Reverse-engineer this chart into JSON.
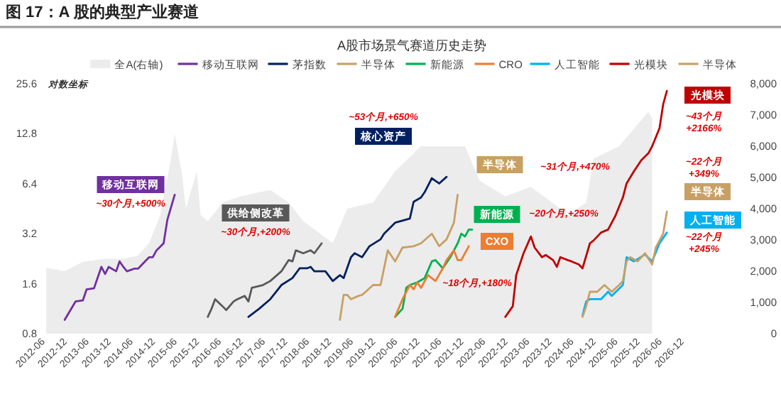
{
  "chart_data": {
    "type": "line",
    "title": "图 17：A 股的典型产业赛道",
    "subtitle": "A股市场景气赛道历史走势",
    "ylabel": "对数坐标",
    "log": "y",
    "legend": "top",
    "xlim": [
      "2012-06",
      "2026-12"
    ],
    "xticks": [
      "2012-06",
      "2012-12",
      "2013-06",
      "2013-12",
      "2014-06",
      "2014-12",
      "2015-06",
      "2015-12",
      "2016-06",
      "2016-12",
      "2017-06",
      "2017-12",
      "2018-06",
      "2018-12",
      "2019-06",
      "2019-12",
      "2020-06",
      "2020-12",
      "2021-06",
      "2021-12",
      "2022-06",
      "2022-12",
      "2023-06",
      "2023-12",
      "2024-06",
      "2024-12",
      "2025-06",
      "2025-12",
      "2026-06",
      "2026-12"
    ],
    "ylim": [
      0.8,
      25.6
    ],
    "yticks": [
      0.8,
      1.6,
      3.2,
      6.4,
      12.8,
      25.6
    ],
    "y2lim": [
      0,
      8000
    ],
    "y2ticks": [
      0,
      {
        "value": 1000,
        "label": "1,000"
      },
      {
        "value": 2000,
        "label": "2,000"
      },
      {
        "value": 3000,
        "label": "3,000"
      },
      {
        "value": 4000,
        "label": "4,000"
      },
      {
        "value": 5000,
        "label": "5,000"
      },
      {
        "value": 6000,
        "label": "6,000"
      },
      {
        "value": 7000,
        "label": "7,000"
      },
      {
        "value": 8000,
        "label": "8,000"
      }
    ],
    "series": [
      {
        "name": "全A(右轴)",
        "type": "area",
        "axis": "y2",
        "color": "#ececec",
        "x": [
          "2012-07",
          "2012-12",
          "2013-05",
          "2013-11",
          "2014-04",
          "2014-08",
          "2014-11",
          "2015-02",
          "2015-05",
          "2015-06",
          "2015-08",
          "2015-09",
          "2015-12",
          "2016-01",
          "2016-03",
          "2016-07",
          "2016-12",
          "2017-08",
          "2018-01",
          "2018-05",
          "2019-01",
          "2019-05",
          "2019-12",
          "2020-06",
          "2021-01",
          "2022-01",
          "2022-05",
          "2022-12",
          "2023-07",
          "2024-03",
          "2024-05",
          "2024-10",
          "2024-12",
          "2025-07",
          "2025-12",
          "2026-03",
          "2026-04"
        ],
        "values": [
          2100,
          2000,
          2300,
          2400,
          2400,
          2500,
          2900,
          3800,
          5600,
          6400,
          5100,
          4000,
          5200,
          3800,
          3600,
          4200,
          4400,
          4600,
          4200,
          3600,
          2900,
          4000,
          4200,
          5200,
          6000,
          6000,
          4900,
          4400,
          4700,
          4000,
          3800,
          4200,
          5600,
          6000,
          6700,
          7100,
          6900
        ]
      },
      {
        "name": "移动互联网",
        "color": "#7030a0",
        "x": [
          "2012-12",
          "2013-03",
          "2013-05",
          "2013-06",
          "2013-08",
          "2013-10",
          "2013-11",
          "2013-12",
          "2014-02",
          "2014-03",
          "2014-04",
          "2014-05",
          "2014-07",
          "2014-08",
          "2014-11",
          "2014-12",
          "2015-01",
          "2015-03",
          "2015-04",
          "2015-06"
        ],
        "values": [
          0.97,
          1.25,
          1.27,
          1.48,
          1.5,
          2.02,
          1.83,
          2.02,
          1.9,
          2.18,
          2.02,
          1.9,
          1.97,
          1.97,
          2.31,
          2.31,
          2.54,
          2.8,
          3.88,
          5.49
        ]
      },
      {
        "color": "#595959",
        "x": [
          "2016-03",
          "2016-04",
          "2016-05",
          "2016-07",
          "2016-08",
          "2016-10",
          "2016-11",
          "2017-01",
          "2017-02",
          "2017-03",
          "2017-06",
          "2017-08",
          "2017-11",
          "2018-01",
          "2018-02",
          "2018-03",
          "2018-05",
          "2018-07",
          "2018-08",
          "2018-10"
        ],
        "values": [
          1.01,
          1.13,
          1.29,
          1.17,
          1.11,
          1.25,
          1.29,
          1.35,
          1.25,
          1.51,
          1.57,
          1.66,
          1.9,
          2.22,
          2.18,
          2.54,
          2.44,
          2.54,
          2.44,
          2.8
        ]
      },
      {
        "name": "茅指数",
        "color": "#002060",
        "x": [
          "2017-02",
          "2017-05",
          "2017-08",
          "2017-11",
          "2018-02",
          "2018-04",
          "2018-06",
          "2018-07",
          "2018-08",
          "2018-11",
          "2019-01",
          "2019-03",
          "2019-04",
          "2019-06",
          "2019-07",
          "2019-09",
          "2019-11",
          "2020-02",
          "2020-03",
          "2020-06",
          "2020-10",
          "2020-11",
          "2021-01",
          "2021-02",
          "2021-04",
          "2021-06",
          "2021-08"
        ],
        "values": [
          1.01,
          1.13,
          1.29,
          1.57,
          1.73,
          1.98,
          1.98,
          2.02,
          1.9,
          1.9,
          1.66,
          1.8,
          1.73,
          2.31,
          2.44,
          2.31,
          2.69,
          2.96,
          3.2,
          3.73,
          3.95,
          4.98,
          5.28,
          5.7,
          6.91,
          6.42,
          7.04
        ]
      },
      {
        "name": "半导体",
        "color": "#c8a064",
        "x": [
          "2019-03",
          "2019-04",
          "2019-05",
          "2019-06",
          "2019-08",
          "2019-09",
          "2019-10",
          "2019-12",
          "2020-02",
          "2020-04",
          "2020-06",
          "2020-08",
          "2020-11",
          "2021-01",
          "2021-04",
          "2021-06",
          "2021-08",
          "2021-10",
          "2021-11"
        ],
        "values": [
          0.97,
          1.37,
          1.37,
          1.29,
          1.35,
          1.37,
          1.43,
          1.57,
          1.57,
          2.54,
          2.18,
          2.64,
          2.69,
          2.8,
          3.2,
          2.69,
          2.96,
          3.73,
          5.49
        ]
      },
      {
        "name": "新能源",
        "color": "#00b050",
        "x": [
          "2020-06",
          "2020-08",
          "2020-09",
          "2020-10",
          "2020-12",
          "2021-02",
          "2021-04",
          "2021-05",
          "2021-07",
          "2021-09",
          "2021-11",
          "2021-12",
          "2022-01",
          "2022-02",
          "2022-03"
        ],
        "values": [
          1.01,
          1.13,
          1.51,
          1.57,
          1.63,
          1.73,
          2.18,
          2.22,
          1.98,
          2.31,
          2.8,
          3.2,
          3.08,
          3.39,
          3.39
        ]
      },
      {
        "name": "CRO",
        "color": "#ed7d31",
        "x": [
          "2020-06",
          "2020-08",
          "2020-10",
          "2020-11",
          "2020-12",
          "2021-01",
          "2021-03",
          "2021-05",
          "2021-07",
          "2021-08",
          "2021-10",
          "2021-11",
          "2021-12",
          "2022-02"
        ],
        "values": [
          1.01,
          1.29,
          1.57,
          1.48,
          1.63,
          1.51,
          1.8,
          1.66,
          1.98,
          2.22,
          2.54,
          2.22,
          2.22,
          2.69
        ]
      },
      {
        "name": "人工智能",
        "color": "#00b0f0",
        "x": [
          "2024-09",
          "2024-10",
          "2024-11",
          "2025-02",
          "2025-04",
          "2025-05",
          "2025-08",
          "2025-09",
          "2025-11",
          "2026-02",
          "2026-04",
          "2026-06",
          "2026-08"
        ],
        "values": [
          1.03,
          1.25,
          1.29,
          1.29,
          1.43,
          1.35,
          1.57,
          2.31,
          2.18,
          2.4,
          2.18,
          2.8,
          3.25
        ]
      },
      {
        "name": "光模块",
        "color": "#c00000",
        "x": [
          "2022-12",
          "2023-02",
          "2023-03",
          "2023-05",
          "2023-07",
          "2023-08",
          "2023-10",
          "2023-11",
          "2024-01",
          "2024-02",
          "2024-03",
          "2024-05",
          "2024-06",
          "2024-08",
          "2024-09",
          "2024-11",
          "2024-12",
          "2025-02",
          "2025-04",
          "2025-06",
          "2025-08",
          "2025-09",
          "2025-11",
          "2026-01",
          "2026-03",
          "2026-04",
          "2026-06",
          "2026-07",
          "2026-08"
        ],
        "values": [
          1.01,
          1.17,
          1.8,
          2.44,
          3.08,
          2.64,
          2.31,
          2.38,
          2.22,
          2.02,
          2.31,
          2.22,
          2.18,
          2.09,
          1.98,
          2.8,
          2.91,
          3.25,
          3.39,
          4.11,
          5.28,
          6.42,
          7.61,
          8.87,
          9.77,
          10.76,
          13.82,
          19.2,
          23.2
        ]
      },
      {
        "name": "半导体",
        "color": "#c8a064",
        "x": [
          "2024-09",
          "2024-10",
          "2024-11",
          "2025-01",
          "2025-03",
          "2025-05",
          "2025-07",
          "2025-08",
          "2025-09",
          "2025-10",
          "2025-12",
          "2026-02",
          "2026-04",
          "2026-05",
          "2026-07",
          "2026-08"
        ],
        "values": [
          1.01,
          1.17,
          1.43,
          1.43,
          1.57,
          1.43,
          1.57,
          1.66,
          2.18,
          2.31,
          2.18,
          2.44,
          2.09,
          2.64,
          3.2,
          4.35
        ]
      }
    ],
    "annotations": [
      "移动互联网",
      "~30个月,+500%",
      "供给侧改革",
      "~30个月,+200%",
      "~53个月,+650%",
      "核心资产",
      "半导体",
      "~31个月,+470%",
      "新能源",
      "~20个月,+250%",
      "CXO",
      "~18个月,+180%",
      "光模块",
      "~43个月\n+2166%",
      "~22个月\n+349%",
      "半导体",
      "人工智能",
      "~22个月\n+245%"
    ]
  }
}
